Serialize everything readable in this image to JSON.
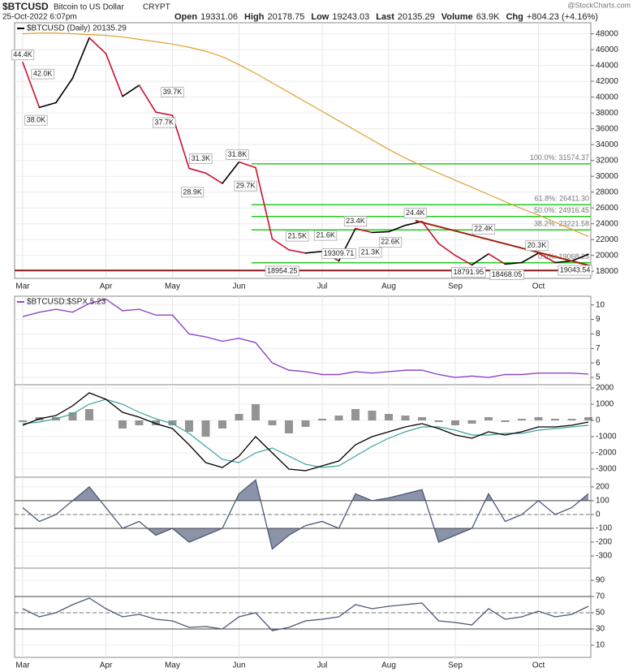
{
  "header": {
    "symbol": "$BTCUSD",
    "name": "Bitcoin to US Dollar",
    "exchange": "CRYPT",
    "date": "25-Oct-2022 6:07pm",
    "watermark": "@StockCharts.com",
    "quote": [
      {
        "label": "Open",
        "value": "19331.06"
      },
      {
        "label": "High",
        "value": "20178.75"
      },
      {
        "label": "Low",
        "value": "19243.03"
      },
      {
        "label": "Last",
        "value": "20135.29"
      },
      {
        "label": "Volume",
        "value": "63.9K"
      },
      {
        "label": "Chg",
        "value": "+804.23 (+4.16%)"
      }
    ]
  },
  "chart_data": [
    {
      "type": "price",
      "categories": [
        "Mar",
        null,
        null,
        null,
        null,
        "Apr",
        null,
        null,
        null,
        "May",
        null,
        null,
        null,
        "Jun",
        null,
        null,
        null,
        null,
        "Jul",
        null,
        null,
        null,
        "Aug",
        null,
        null,
        null,
        "Sep",
        null,
        null,
        null,
        null,
        "Oct",
        null,
        null,
        null
      ],
      "ylim": [
        17100,
        49400
      ],
      "yticks": [
        18000,
        20000,
        22000,
        24000,
        26000,
        28000,
        30000,
        32000,
        34000,
        36000,
        38000,
        40000,
        42000,
        44000,
        46000,
        48000
      ],
      "series": [
        {
          "name": "$BTCUSD (Daily) 20135.29",
          "color": "#000000",
          "down_color": "#c8102e",
          "values": [
            44400,
            38700,
            39300,
            42400,
            47500,
            45500,
            40100,
            41500,
            38100,
            37700,
            31000,
            30400,
            29100,
            31800,
            31100,
            22100,
            20700,
            20300,
            20500,
            19300,
            23400,
            22900,
            23000,
            23800,
            24300,
            21500,
            20000,
            18800,
            20200,
            18900,
            19100,
            20300,
            19100,
            19300,
            20135.29
          ]
        },
        {
          "color": "#e0a030",
          "values": [
            48000,
            48100,
            48100,
            48000,
            47900,
            47800,
            47600,
            47300,
            47000,
            46700,
            46300,
            45800,
            45100,
            44100,
            43000,
            41800,
            40600,
            39400,
            38200,
            37000,
            35800,
            34600,
            33400,
            32300,
            31300,
            30400,
            29500,
            28600,
            27700,
            26800,
            25900,
            25100,
            24200,
            23300,
            22400
          ]
        }
      ],
      "levels": {
        "color": "#22cc22",
        "lines": [
          {
            "label": "100.0%: 31574.37",
            "value": 31574.37
          },
          {
            "label": "61.8%: 26411.30",
            "value": 26411.3
          },
          {
            "label": "50.0%: 24916.45",
            "value": 24916.45
          },
          {
            "label": "38.2%: 23221.58",
            "value": 23221.58
          },
          {
            "label": "0.0%: 19068.23",
            "value": 19068.23
          }
        ]
      },
      "support": {
        "value": 18100,
        "color": "#8b1a1a"
      },
      "trendline": {
        "color": "#a0200a",
        "x": [
          23.6,
          34.1
        ],
        "values": [
          24400,
          18700
        ]
      },
      "annotations": [
        {
          "text": "44.4K",
          "value": 44400,
          "x": 0
        },
        {
          "text": "38.0K",
          "value": 38000,
          "x": 0.8
        },
        {
          "text": "42.0K",
          "value": 42000,
          "x": 1.2
        },
        {
          "text": "37.7K",
          "value": 37700,
          "x": 8.5
        },
        {
          "text": "39.7K",
          "value": 39700,
          "x": 9
        },
        {
          "text": "28.9K",
          "value": 28900,
          "x": 10.2
        },
        {
          "text": "31.3K",
          "value": 31300,
          "x": 10.7
        },
        {
          "text": "31.8K",
          "value": 31800,
          "x": 12.9
        },
        {
          "text": "29.7K",
          "value": 29700,
          "x": 13.4
        },
        {
          "text": "18954.25",
          "value": 18954.25,
          "x": 15.6
        },
        {
          "text": "21.5K",
          "value": 21500,
          "x": 16.5
        },
        {
          "text": "21.6K",
          "value": 21600,
          "x": 18.2
        },
        {
          "text": "19309.71",
          "value": 19309.71,
          "x": 19
        },
        {
          "text": "23.4K",
          "value": 23400,
          "x": 20
        },
        {
          "text": "21.3K",
          "value": 21300,
          "x": 20.9
        },
        {
          "text": "22.6K",
          "value": 22600,
          "x": 22.1
        },
        {
          "text": "24.4K",
          "value": 24400,
          "x": 23.6
        },
        {
          "text": "18791.95",
          "value": 18791.95,
          "x": 26.8
        },
        {
          "text": "22.4K",
          "value": 22400,
          "x": 27.7
        },
        {
          "text": "18468.05",
          "value": 18468.05,
          "x": 29.1
        },
        {
          "text": "20.3K",
          "value": 20300,
          "x": 30.9
        },
        {
          "text": "19043.54",
          "value": 19043.54,
          "x": 33.2
        }
      ]
    },
    {
      "type": "ratio",
      "ylim": [
        4.5,
        10.6
      ],
      "yticks": [
        5,
        6,
        7,
        8,
        9,
        10
      ],
      "series": [
        {
          "name": "$BTCUSD:$SPX 5.23",
          "color": "#8e44c8",
          "values": [
            9.2,
            9.5,
            9.7,
            9.5,
            10.1,
            10.4,
            9.6,
            9.7,
            9.3,
            9.3,
            8.0,
            7.8,
            7.5,
            7.7,
            7.4,
            6.0,
            5.5,
            5.4,
            5.2,
            5.2,
            5.4,
            5.3,
            5.4,
            5.5,
            5.5,
            5.2,
            5.0,
            5.1,
            5.0,
            5.2,
            5.2,
            5.3,
            5.3,
            5.3,
            5.23
          ]
        }
      ]
    },
    {
      "type": "macd",
      "ylim": [
        -3500,
        2200
      ],
      "yticks": [
        -3000,
        -2000,
        -1000,
        0,
        1000,
        2000
      ],
      "macd": {
        "color": "#000000",
        "values": [
          -300,
          100,
          300,
          900,
          1700,
          1300,
          500,
          200,
          -200,
          -500,
          -1500,
          -2600,
          -2900,
          -2200,
          -1000,
          -2000,
          -3000,
          -3100,
          -2800,
          -2500,
          -1500,
          -1000,
          -700,
          -400,
          -200,
          -500,
          -900,
          -1100,
          -700,
          -900,
          -700,
          -400,
          -400,
          -300,
          -100
        ]
      },
      "signal": {
        "color": "#3aa0a0",
        "values": [
          -200,
          -100,
          100,
          400,
          1000,
          1300,
          1000,
          500,
          100,
          -200,
          -800,
          -1600,
          -2400,
          -2600,
          -2000,
          -1700,
          -2200,
          -2700,
          -2900,
          -2800,
          -2200,
          -1600,
          -1100,
          -700,
          -400,
          -400,
          -600,
          -900,
          -900,
          -800,
          -800,
          -600,
          -500,
          -400,
          -300
        ]
      },
      "histogram": {
        "color": "#666666",
        "values": [
          -100,
          200,
          200,
          500,
          700,
          0,
          -500,
          -300,
          -300,
          -300,
          -700,
          -1000,
          -500,
          400,
          1000,
          -300,
          -800,
          -400,
          100,
          300,
          700,
          600,
          400,
          300,
          200,
          -100,
          -300,
          -200,
          200,
          -100,
          100,
          200,
          100,
          100,
          200
        ]
      }
    },
    {
      "type": "oscillator",
      "ylim": [
        -388,
        270
      ],
      "yticks": [
        -300,
        -200,
        -100,
        0,
        100,
        200
      ],
      "levels": {
        "upper": 100,
        "lower": -100,
        "mid": 0
      },
      "color": "#4b5878",
      "fill": "#8a93a8",
      "values": [
        50,
        -50,
        0,
        100,
        200,
        50,
        -100,
        -50,
        -150,
        -100,
        -200,
        -150,
        -100,
        150,
        250,
        -250,
        -150,
        -80,
        -50,
        -100,
        150,
        100,
        120,
        150,
        180,
        -200,
        -150,
        -100,
        150,
        -50,
        0,
        100,
        0,
        50,
        150
      ]
    },
    {
      "type": "oscillator",
      "categories": [
        "Mar",
        null,
        null,
        null,
        null,
        "Apr",
        null,
        null,
        null,
        "May",
        null,
        null,
        null,
        "Jun",
        null,
        null,
        null,
        null,
        "Jul",
        null,
        null,
        null,
        "Aug",
        null,
        null,
        null,
        "Sep",
        null,
        null,
        null,
        null,
        "Oct",
        null,
        null,
        null
      ],
      "ylim": [
        -5,
        105
      ],
      "yticks": [
        10,
        30,
        50,
        70,
        90
      ],
      "levels": {
        "upper": 70,
        "lower": 30,
        "mid": 50
      },
      "color": "#4b5878",
      "fill": "#8a93a8",
      "values": [
        55,
        45,
        50,
        60,
        68,
        55,
        45,
        48,
        42,
        40,
        32,
        33,
        30,
        45,
        50,
        28,
        32,
        40,
        42,
        45,
        60,
        55,
        58,
        60,
        62,
        40,
        38,
        35,
        55,
        42,
        45,
        52,
        45,
        48,
        58
      ]
    }
  ]
}
